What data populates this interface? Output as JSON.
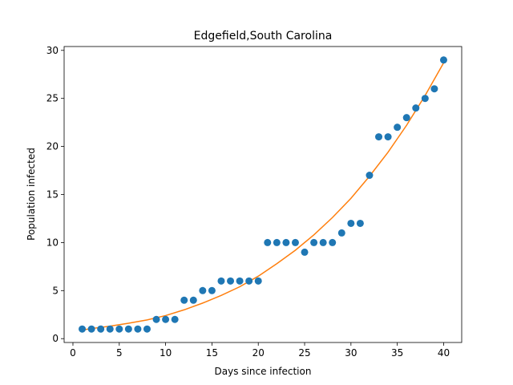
{
  "chart_data": {
    "type": "scatter",
    "title": "Edgefield,South Carolina",
    "xlabel": "Days since infection",
    "ylabel": "Population infected",
    "xlim": [
      -0.95,
      41.95
    ],
    "ylim": [
      -0.4,
      30.4
    ],
    "xticks": [
      0,
      5,
      10,
      15,
      20,
      25,
      30,
      35,
      40
    ],
    "yticks": [
      0,
      5,
      10,
      15,
      20,
      25,
      30
    ],
    "grid": false,
    "colors": {
      "points": "#1f77b4",
      "fit": "#ff7f0e"
    },
    "series": [
      {
        "type": "scatter",
        "x": [
          1,
          2,
          3,
          4,
          5,
          6,
          7,
          8,
          9,
          10,
          11,
          12,
          13,
          14,
          15,
          16,
          17,
          18,
          19,
          20,
          21,
          22,
          23,
          24,
          25,
          26,
          27,
          28,
          29,
          30,
          31,
          32,
          33,
          34,
          35,
          36,
          37,
          38,
          39,
          40
        ],
        "y": [
          1,
          1,
          1,
          1,
          1,
          1,
          1,
          1,
          2,
          2,
          2,
          4,
          4,
          5,
          5,
          6,
          6,
          6,
          6,
          6,
          10,
          10,
          10,
          10,
          9,
          10,
          10,
          10,
          11,
          12,
          12,
          17,
          21,
          21,
          22,
          23,
          24,
          25,
          26,
          29
        ]
      },
      {
        "type": "line",
        "x": [
          1,
          2,
          4,
          6,
          8,
          10,
          12,
          14,
          16,
          18,
          20,
          22,
          24,
          26,
          28,
          30,
          32,
          34,
          36,
          38,
          40
        ],
        "y": [
          0.9,
          1.05,
          1.3,
          1.6,
          1.95,
          2.4,
          3.0,
          3.7,
          4.5,
          5.4,
          6.5,
          7.8,
          9.2,
          10.8,
          12.6,
          14.6,
          16.9,
          19.4,
          22.2,
          25.3,
          28.7
        ]
      }
    ]
  }
}
